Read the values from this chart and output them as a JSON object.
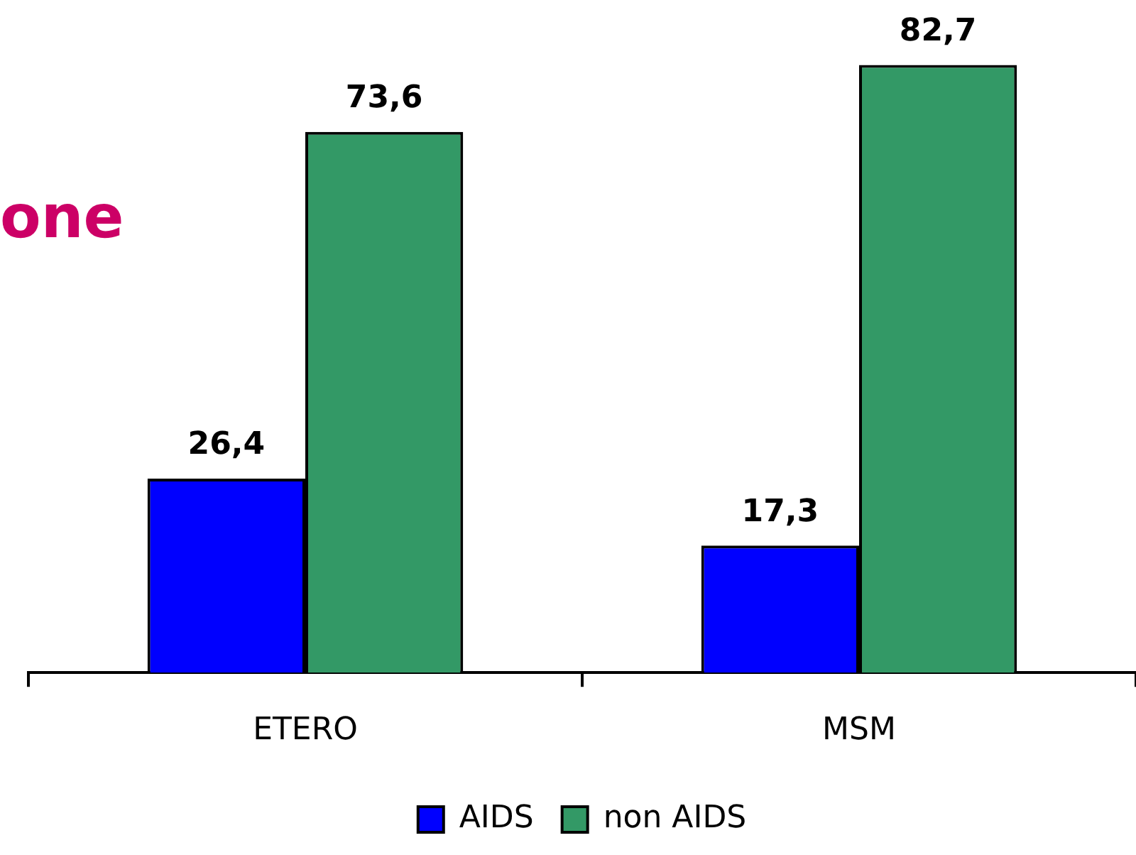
{
  "chart_data": {
    "type": "bar",
    "categories": [
      "ETERO",
      "MSM"
    ],
    "series": [
      {
        "name": "AIDS",
        "color": "#0000ff",
        "values": [
          26.4,
          17.3
        ],
        "value_labels": [
          "26,4",
          "17,3"
        ]
      },
      {
        "name": "non AIDS",
        "color": "#339966",
        "values": [
          73.6,
          82.7
        ],
        "value_labels": [
          "73,6",
          "82,7"
        ]
      }
    ],
    "annotations": [
      "one"
    ],
    "legend": "bottom",
    "grid": false
  }
}
